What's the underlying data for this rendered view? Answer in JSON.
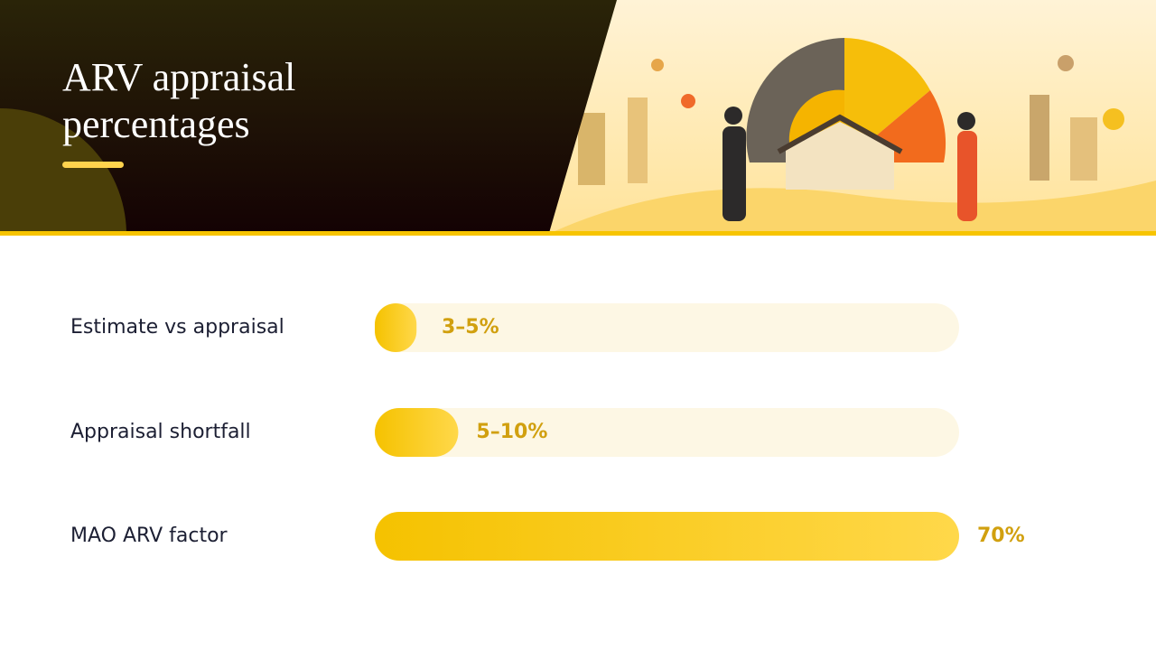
{
  "chart_data": {
    "type": "bar",
    "orientation": "horizontal",
    "title": "ARV appraisal percentages",
    "categories": [
      "Estimate vs appraisal",
      "Appraisal shortfall",
      "MAO ARV factor"
    ],
    "values": [
      5,
      10,
      70
    ],
    "value_labels": [
      "3–5%",
      "5–10%",
      "70%"
    ],
    "xlim": [
      0,
      70
    ],
    "color": "#f7c400"
  }
}
